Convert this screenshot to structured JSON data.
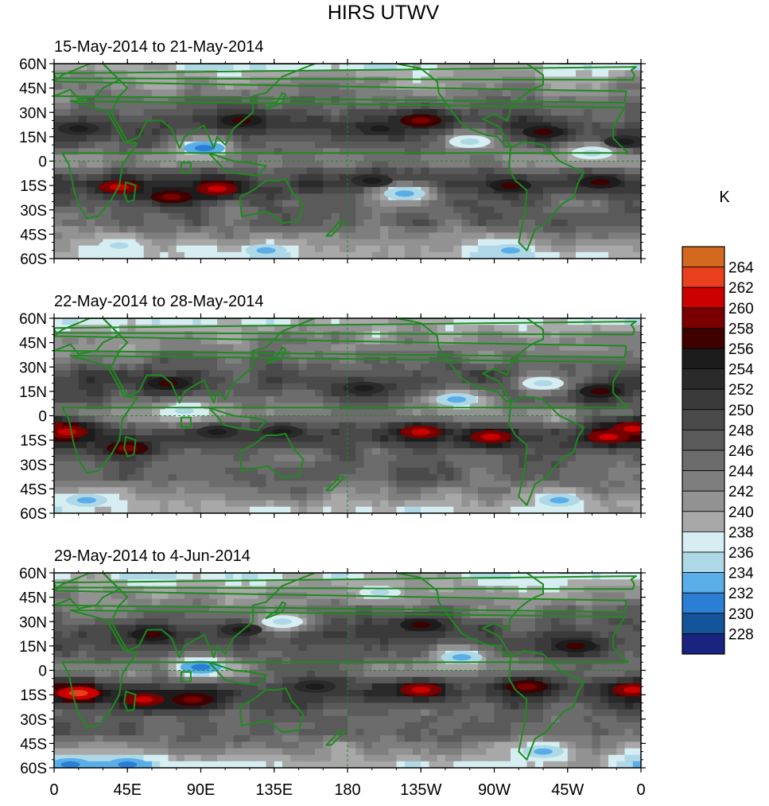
{
  "chart_data": {
    "type": "heatmap",
    "title": "HIRS UTWV",
    "units": "K",
    "lat_ticks": [
      "60N",
      "45N",
      "30N",
      "15N",
      "0",
      "15S",
      "30S",
      "45S",
      "60S"
    ],
    "lon_ticks": [
      "0",
      "45E",
      "90E",
      "135E",
      "180",
      "135W",
      "90W",
      "45W",
      "0"
    ],
    "colorbar": {
      "labels": [
        "264",
        "262",
        "260",
        "258",
        "256",
        "254",
        "252",
        "250",
        "248",
        "246",
        "244",
        "242",
        "240",
        "238",
        "236",
        "234",
        "232",
        "230",
        "228"
      ],
      "colors": [
        "#d2691e",
        "#e8401c",
        "#cc0000",
        "#7a0000",
        "#3f0000",
        "#1c1c1c",
        "#2a2a2a",
        "#3a3a3a",
        "#4a4a4a",
        "#5a5a5a",
        "#6c6c6c",
        "#7e7e7e",
        "#929292",
        "#a8a8a8",
        "#d6eef2",
        "#aed8e6",
        "#5aaee8",
        "#2a7fd4",
        "#14549a",
        "#1a237e"
      ]
    },
    "panels": [
      {
        "subtitle": "15-May-2014 to 21-May-2014",
        "features": [
          {
            "lon": 100,
            "lat": -17,
            "value": 259
          },
          {
            "lon": 40,
            "lat": -16,
            "value": 258
          },
          {
            "lon": 72,
            "lat": -22,
            "value": 257
          },
          {
            "lon": 115,
            "lat": 25,
            "value": 255
          },
          {
            "lon": 225,
            "lat": 25,
            "value": 257
          },
          {
            "lon": 200,
            "lat": 20,
            "value": 253
          },
          {
            "lon": 300,
            "lat": 18,
            "value": 254
          },
          {
            "lon": 350,
            "lat": 12,
            "value": 253
          },
          {
            "lon": 195,
            "lat": -12,
            "value": 253
          },
          {
            "lon": 280,
            "lat": -15,
            "value": 254
          },
          {
            "lon": 335,
            "lat": -13,
            "value": 254
          },
          {
            "lon": 15,
            "lat": 20,
            "value": 252
          },
          {
            "lon": 92,
            "lat": 8,
            "value": 233
          },
          {
            "lon": 215,
            "lat": -20,
            "value": 234
          },
          {
            "lon": 330,
            "lat": 5,
            "value": 237
          },
          {
            "lon": 255,
            "lat": 12,
            "value": 237
          },
          {
            "lon": 130,
            "lat": -55,
            "value": 235
          },
          {
            "lon": 280,
            "lat": -55,
            "value": 235
          },
          {
            "lon": 40,
            "lat": -52,
            "value": 236
          }
        ]
      },
      {
        "subtitle": "22-May-2014 to 28-May-2014",
        "features": [
          {
            "lon": 8,
            "lat": -10,
            "value": 259
          },
          {
            "lon": 45,
            "lat": -20,
            "value": 256
          },
          {
            "lon": 225,
            "lat": -10,
            "value": 258
          },
          {
            "lon": 268,
            "lat": -13,
            "value": 258
          },
          {
            "lon": 340,
            "lat": -13,
            "value": 258
          },
          {
            "lon": 355,
            "lat": -8,
            "value": 259
          },
          {
            "lon": 70,
            "lat": 20,
            "value": 255
          },
          {
            "lon": 190,
            "lat": 17,
            "value": 253
          },
          {
            "lon": 335,
            "lat": 15,
            "value": 255
          },
          {
            "lon": 140,
            "lat": -10,
            "value": 252
          },
          {
            "lon": 100,
            "lat": -10,
            "value": 252
          },
          {
            "lon": 247,
            "lat": 10,
            "value": 234
          },
          {
            "lon": 80,
            "lat": 3,
            "value": 236
          },
          {
            "lon": 300,
            "lat": 20,
            "value": 237
          },
          {
            "lon": 310,
            "lat": -52,
            "value": 235
          },
          {
            "lon": 20,
            "lat": -52,
            "value": 235
          }
        ]
      },
      {
        "subtitle": "29-May-2014 to 4-Jun-2014",
        "features": [
          {
            "lon": 15,
            "lat": -14,
            "value": 261
          },
          {
            "lon": 55,
            "lat": -18,
            "value": 259
          },
          {
            "lon": 85,
            "lat": -18,
            "value": 257
          },
          {
            "lon": 225,
            "lat": -12,
            "value": 259
          },
          {
            "lon": 290,
            "lat": -10,
            "value": 257
          },
          {
            "lon": 355,
            "lat": -12,
            "value": 259
          },
          {
            "lon": 60,
            "lat": 22,
            "value": 255
          },
          {
            "lon": 115,
            "lat": 25,
            "value": 253
          },
          {
            "lon": 225,
            "lat": 28,
            "value": 254
          },
          {
            "lon": 320,
            "lat": 15,
            "value": 254
          },
          {
            "lon": 160,
            "lat": -10,
            "value": 252
          },
          {
            "lon": 90,
            "lat": 2,
            "value": 233
          },
          {
            "lon": 140,
            "lat": 30,
            "value": 236
          },
          {
            "lon": 250,
            "lat": 8,
            "value": 235
          },
          {
            "lon": 10,
            "lat": -58,
            "value": 232
          },
          {
            "lon": 45,
            "lat": -58,
            "value": 232
          },
          {
            "lon": 200,
            "lat": 48,
            "value": 237
          },
          {
            "lon": 300,
            "lat": -50,
            "value": 235
          }
        ]
      }
    ]
  }
}
